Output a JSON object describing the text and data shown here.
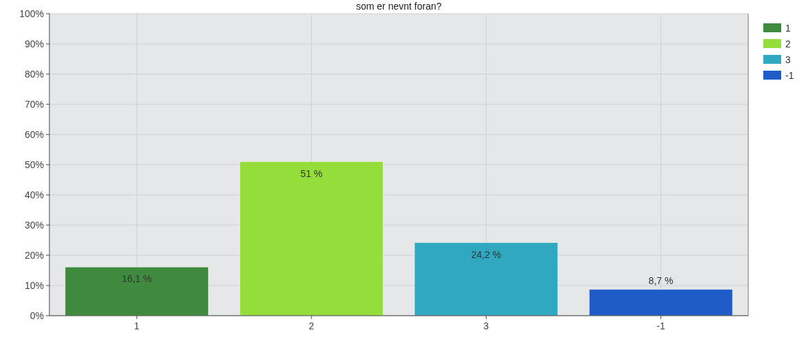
{
  "chart_data": {
    "type": "bar",
    "title": "som er nevnt foran?",
    "categories": [
      "1",
      "2",
      "3",
      "-1"
    ],
    "stacked": true,
    "series": [
      {
        "name": "1",
        "color": "#3f8a3f",
        "values": [
          16.1,
          null,
          null,
          null
        ],
        "value_labels": [
          "16,1 %",
          null,
          null,
          null
        ]
      },
      {
        "name": "2",
        "color": "#94dd3a",
        "values": [
          null,
          51,
          null,
          null
        ],
        "value_labels": [
          null,
          "51 %",
          null,
          null
        ]
      },
      {
        "name": "3",
        "color": "#2fa8c0",
        "values": [
          null,
          null,
          24.2,
          null
        ],
        "value_labels": [
          null,
          null,
          "24,2 %",
          null
        ]
      },
      {
        "name": "-1",
        "color": "#1f5cc8",
        "values": [
          null,
          null,
          null,
          8.7
        ],
        "value_labels": [
          null,
          null,
          null,
          "8,7 %"
        ]
      }
    ],
    "ylim": [
      0,
      100
    ],
    "yticks": [
      {
        "value": 0,
        "label": "0%"
      },
      {
        "value": 10,
        "label": "10%"
      },
      {
        "value": 20,
        "label": "20%"
      },
      {
        "value": 30,
        "label": "30%"
      },
      {
        "value": 40,
        "label": "40%"
      },
      {
        "value": 50,
        "label": "50%"
      },
      {
        "value": 60,
        "label": "60%"
      },
      {
        "value": 70,
        "label": "70%"
      },
      {
        "value": 80,
        "label": "80%"
      },
      {
        "value": 90,
        "label": "90%"
      },
      {
        "value": 100,
        "label": "100%"
      }
    ],
    "grid": true,
    "legend": "top right"
  }
}
